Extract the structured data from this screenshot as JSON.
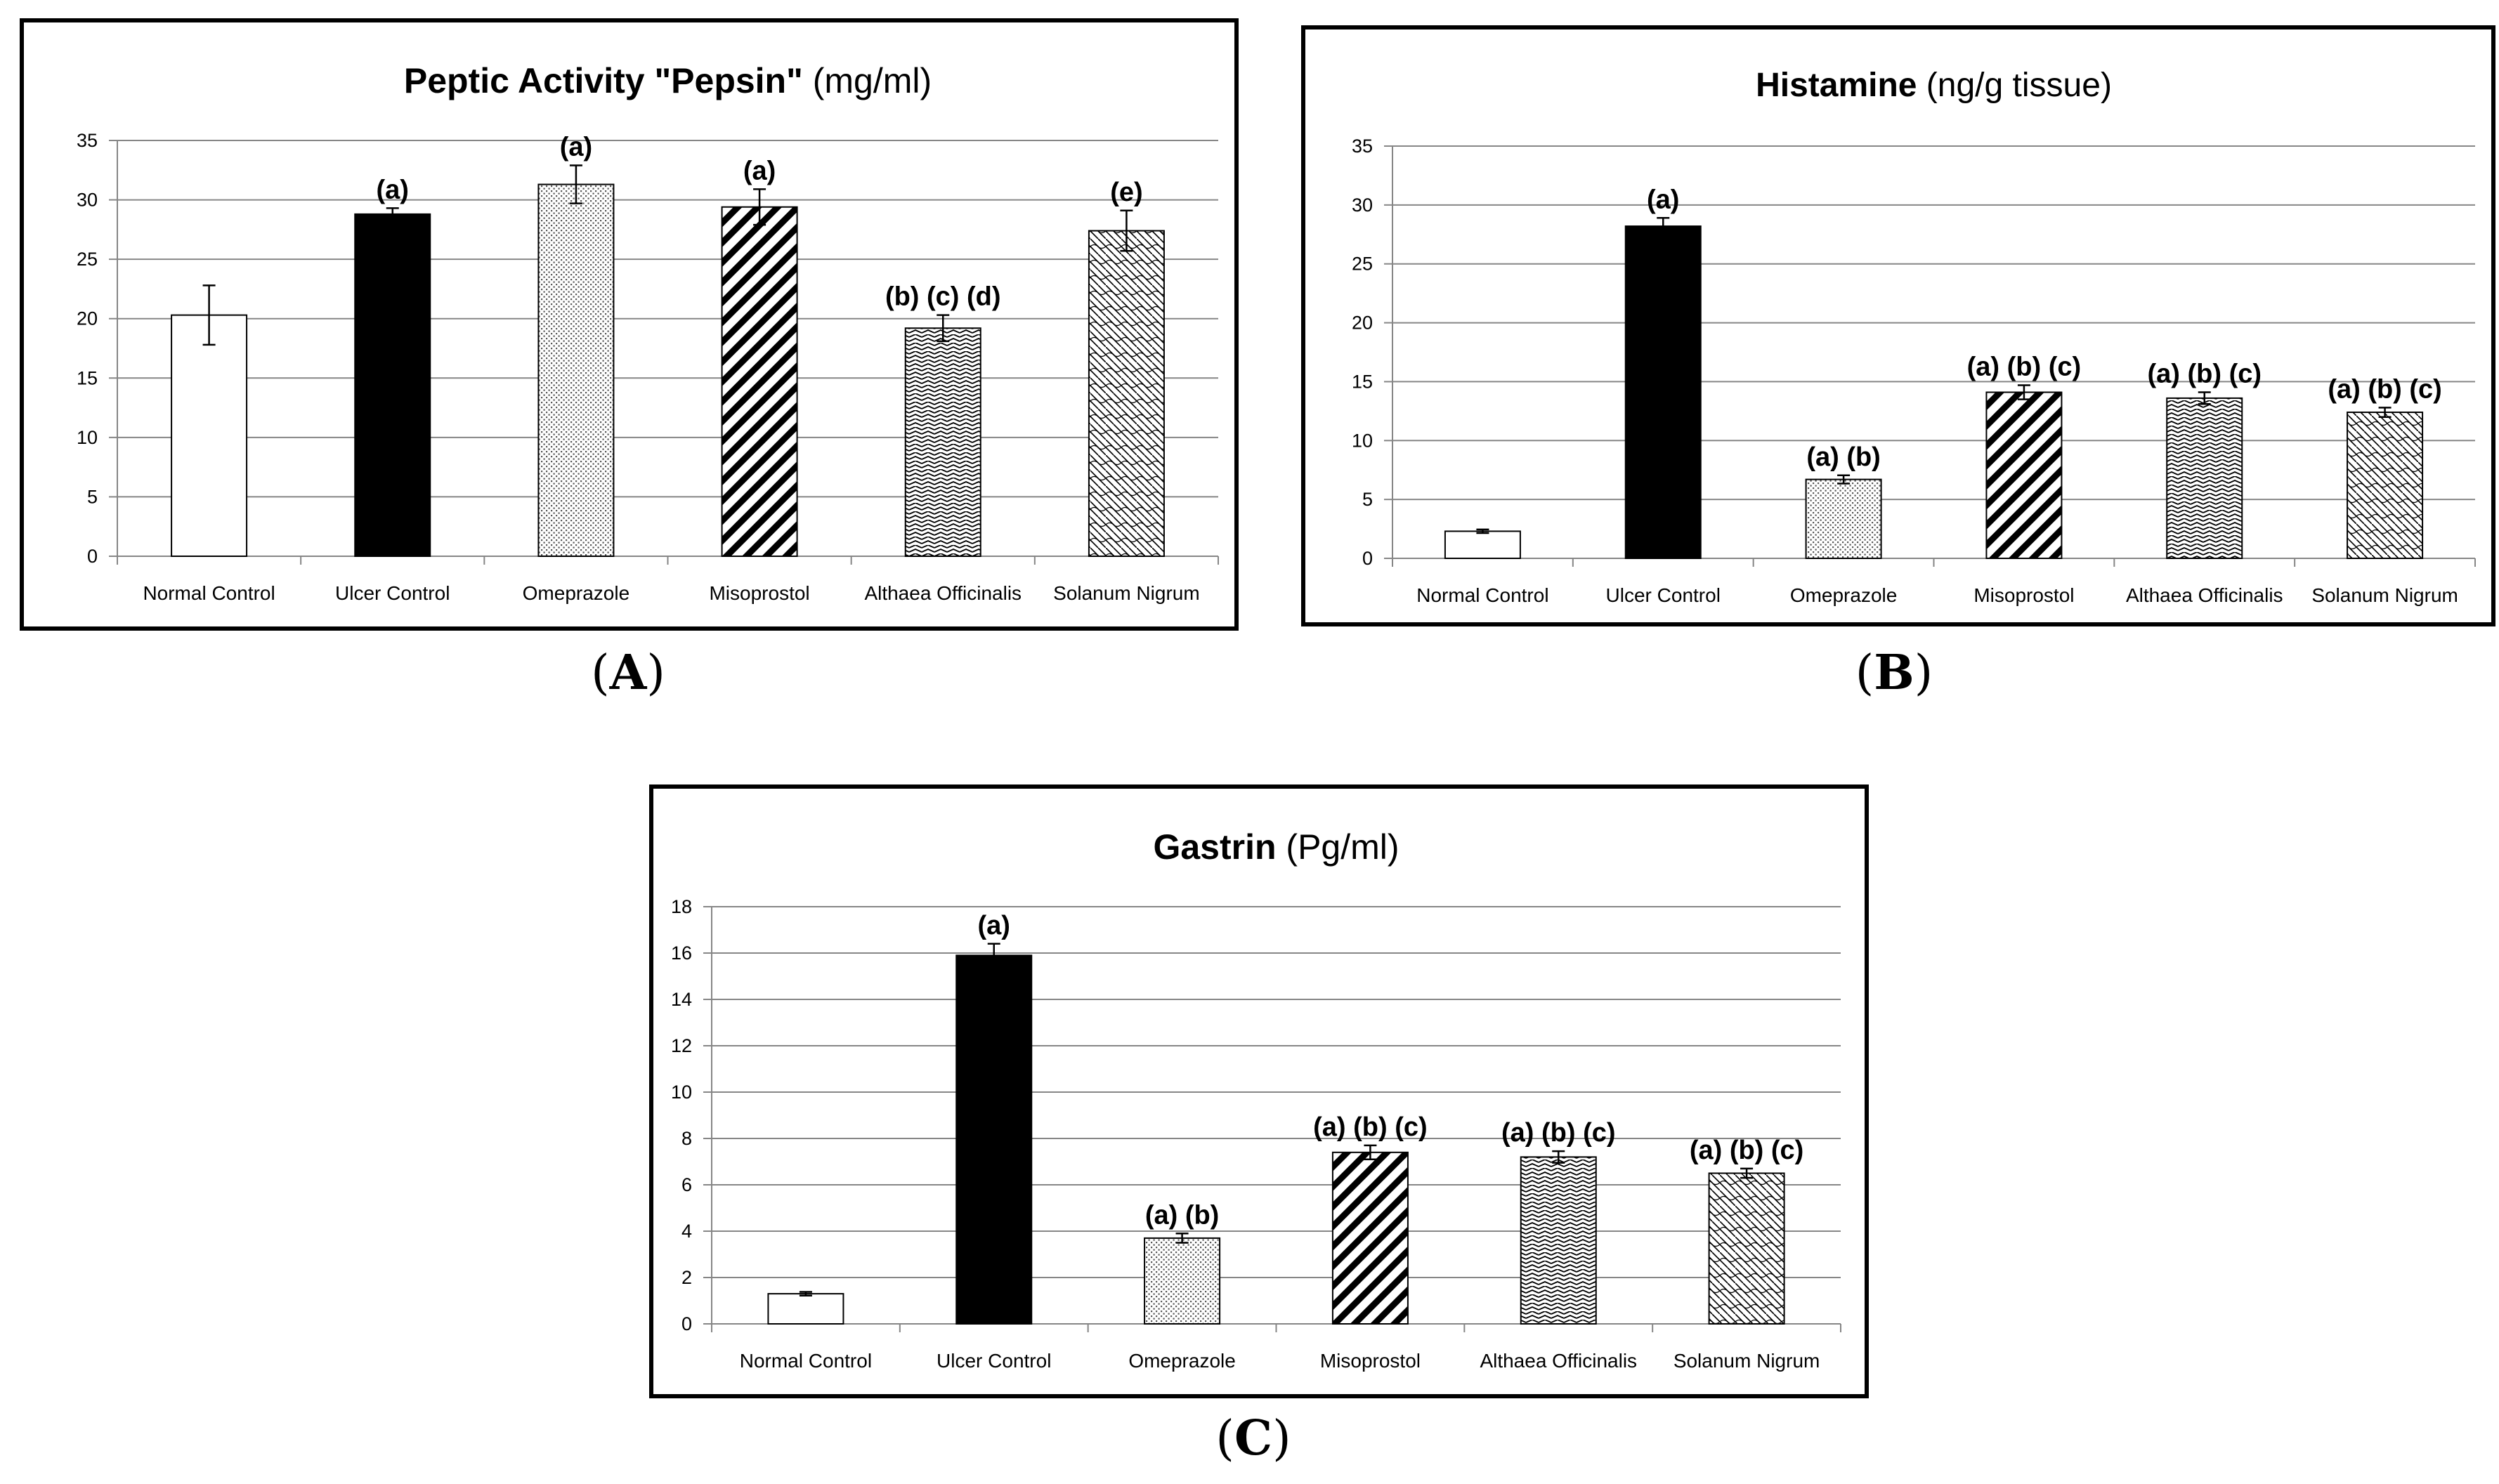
{
  "colors": {
    "axis": "#868686",
    "grid": "#868686",
    "bar_outline": "#000000",
    "background": "#ffffff",
    "text": "#000000"
  },
  "panel_labels": {
    "a_open": "(",
    "a_letter": "A",
    "a_close": ")",
    "b_open": "(",
    "b_letter": "B",
    "b_close": ")",
    "c_open": "(",
    "c_letter": "C",
    "c_close": ")"
  },
  "chart_data": [
    {
      "id": "A",
      "type": "bar",
      "title_bold": "Peptic Activity \"Pepsin\"",
      "title_unit": " (mg/ml)",
      "categories": [
        "Normal Control",
        "Ulcer Control",
        "Omeprazole",
        "Misoprostol",
        "Althaea Officinalis",
        "Solanum Nigrum"
      ],
      "values": [
        20.3,
        28.8,
        31.3,
        29.4,
        19.2,
        27.4
      ],
      "errors": [
        2.5,
        0.5,
        1.6,
        1.5,
        1.1,
        1.7
      ],
      "patterns": [
        "none",
        "solid",
        "dots",
        "diag",
        "zigzag",
        "weave"
      ],
      "annotations": [
        "",
        "(a)",
        "(a)",
        "(a)",
        "(b) (c) (d)",
        "(e)"
      ],
      "ylim": [
        0,
        35
      ],
      "yticks": [
        "0",
        "5",
        "10",
        "15",
        "20",
        "25",
        "30",
        "35"
      ],
      "grid": true
    },
    {
      "id": "B",
      "type": "bar",
      "title_bold": "Histamine",
      "title_unit": " (ng/g tissue)",
      "categories": [
        "Normal Control",
        "Ulcer Control",
        "Omeprazole",
        "Misoprostol",
        "Althaea Officinalis",
        "Solanum Nigrum"
      ],
      "values": [
        2.3,
        28.2,
        6.7,
        14.1,
        13.6,
        12.4
      ],
      "errors": [
        0.15,
        0.7,
        0.35,
        0.6,
        0.5,
        0.4
      ],
      "patterns": [
        "none",
        "solid",
        "dots",
        "diag",
        "zigzag",
        "weave"
      ],
      "annotations": [
        "",
        "(a)",
        "(a) (b)",
        "(a) (b) (c)",
        "(a) (b) (c)",
        "(a) (b) (c)"
      ],
      "ylim": [
        0,
        35
      ],
      "yticks": [
        "0",
        "5",
        "10",
        "15",
        "20",
        "25",
        "30",
        "35"
      ],
      "grid": true
    },
    {
      "id": "C",
      "type": "bar",
      "title_bold": "Gastrin",
      "title_unit": " (Pg/ml)",
      "categories": [
        "Normal Control",
        "Ulcer Control",
        "Omeprazole",
        "Misoprostol",
        "Althaea Officinalis",
        "Solanum Nigrum"
      ],
      "values": [
        1.3,
        15.9,
        3.7,
        7.4,
        7.2,
        6.5
      ],
      "errors": [
        0.08,
        0.5,
        0.2,
        0.3,
        0.25,
        0.2
      ],
      "patterns": [
        "none",
        "solid",
        "dots",
        "diag",
        "zigzag",
        "weave"
      ],
      "annotations": [
        "",
        "(a)",
        "(a) (b)",
        "(a) (b) (c)",
        "(a) (b) (c)",
        "(a) (b) (c)"
      ],
      "ylim": [
        0,
        18
      ],
      "yticks": [
        "0",
        "2",
        "4",
        "6",
        "8",
        "10",
        "12",
        "14",
        "16",
        "18"
      ],
      "grid": true
    }
  ]
}
